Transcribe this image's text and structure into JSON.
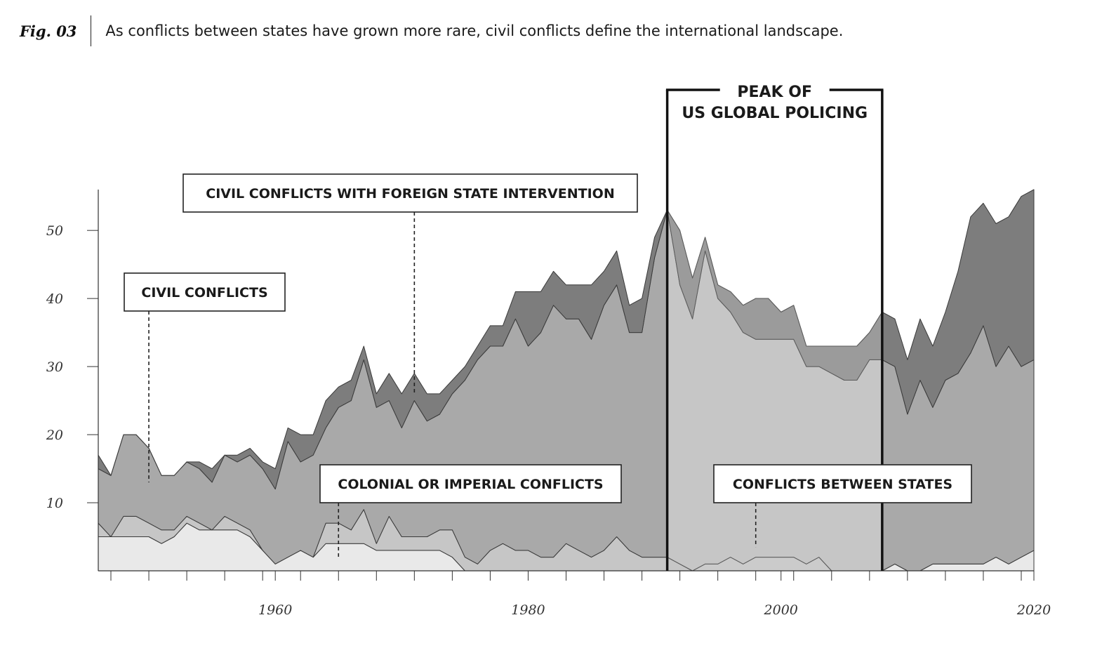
{
  "header": {
    "fig_label": "Fig. 03",
    "caption": "As conflicts between states have grown more rare, civil conflicts define the international landscape."
  },
  "chart_data": {
    "type": "area",
    "stacked": true,
    "x": [
      1946,
      1947,
      1948,
      1949,
      1950,
      1951,
      1952,
      1953,
      1954,
      1955,
      1956,
      1957,
      1958,
      1959,
      1960,
      1961,
      1962,
      1963,
      1964,
      1965,
      1966,
      1967,
      1968,
      1969,
      1970,
      1971,
      1972,
      1973,
      1974,
      1975,
      1976,
      1977,
      1978,
      1979,
      1980,
      1981,
      1982,
      1983,
      1984,
      1985,
      1986,
      1987,
      1988,
      1989,
      1990,
      1991,
      1992,
      1993,
      1994,
      1995,
      1996,
      1997,
      1998,
      1999,
      2000,
      2001,
      2002,
      2003,
      2004,
      2005,
      2006,
      2007,
      2008,
      2009,
      2010,
      2011,
      2012,
      2013,
      2014,
      2015,
      2016,
      2017,
      2018,
      2019,
      2020
    ],
    "series": [
      {
        "name": "Conflicts between states",
        "values": [
          5,
          5,
          5,
          5,
          5,
          4,
          5,
          7,
          6,
          6,
          6,
          6,
          5,
          3,
          1,
          2,
          3,
          2,
          4,
          4,
          4,
          4,
          3,
          3,
          3,
          3,
          3,
          3,
          2,
          0,
          0,
          0,
          0,
          0,
          0,
          0,
          0,
          0,
          0,
          0,
          0,
          0,
          0,
          0,
          0,
          0,
          0,
          0,
          1,
          1,
          2,
          1,
          2,
          2,
          2,
          2,
          1,
          2,
          0,
          0,
          0,
          0,
          0,
          1,
          0,
          0,
          1,
          1,
          1,
          1,
          1,
          2,
          1,
          2,
          3
        ]
      },
      {
        "name": "Colonial or imperial conflicts",
        "values": [
          2,
          0,
          3,
          3,
          2,
          2,
          1,
          1,
          1,
          0,
          2,
          1,
          1,
          0,
          0,
          0,
          0,
          0,
          3,
          3,
          2,
          5,
          1,
          5,
          2,
          2,
          2,
          3,
          4,
          2,
          1,
          3,
          4,
          3,
          3,
          2,
          2,
          4,
          3,
          2,
          3,
          5,
          3,
          2,
          2,
          2,
          1,
          0,
          0,
          0,
          0,
          0,
          0,
          0,
          0,
          0,
          0,
          0,
          0,
          0,
          0,
          0,
          0,
          0,
          0,
          0,
          0,
          0,
          0,
          0,
          0,
          0,
          0,
          0,
          0
        ]
      },
      {
        "name": "Civil conflicts",
        "values": [
          8,
          9,
          12,
          12,
          11,
          8,
          8,
          8,
          8,
          7,
          9,
          9,
          11,
          12,
          11,
          17,
          13,
          15,
          14,
          17,
          19,
          22,
          20,
          17,
          16,
          20,
          17,
          17,
          20,
          26,
          30,
          30,
          29,
          34,
          30,
          33,
          37,
          33,
          34,
          32,
          36,
          37,
          32,
          33,
          44,
          51,
          41,
          37,
          46,
          39,
          36,
          34,
          32,
          32,
          32,
          32,
          29,
          28,
          29,
          28,
          28,
          31,
          31,
          29,
          23,
          28,
          23,
          27,
          28,
          31,
          35,
          28,
          32,
          28,
          28
        ]
      },
      {
        "name": "Civil conflicts with foreign state intervention",
        "values": [
          2,
          0,
          0,
          0,
          0,
          0,
          0,
          0,
          1,
          2,
          0,
          1,
          1,
          1,
          3,
          2,
          4,
          3,
          4,
          3,
          3,
          2,
          2,
          4,
          5,
          4,
          4,
          3,
          2,
          2,
          2,
          3,
          3,
          4,
          8,
          6,
          5,
          5,
          5,
          8,
          5,
          5,
          4,
          5,
          3,
          0,
          8,
          6,
          2,
          2,
          3,
          4,
          6,
          6,
          4,
          5,
          3,
          3,
          4,
          5,
          5,
          4,
          7,
          7,
          8,
          9,
          9,
          10,
          15,
          20,
          18,
          21,
          19,
          25,
          25
        ]
      }
    ],
    "series_shades": [
      "#e9e9e9",
      "#c6c6c6",
      "#a9a9a9",
      "#7d7d7d"
    ],
    "highlight_shades": {
      "Conflicts between states": "#cbcbcb",
      "Civil conflicts": "#c6c6c6",
      "Civil conflicts with foreign state intervention": "#9b9b9b"
    },
    "highlight_range": [
      1991,
      2008
    ],
    "highlight_label": [
      "PEAK OF",
      "US GLOBAL POLICING"
    ],
    "x_ticks": [
      1960,
      1980,
      2000,
      2020
    ],
    "y_ticks": [
      10,
      20,
      30,
      40,
      50
    ],
    "ylim": [
      0,
      56
    ],
    "xlim": [
      1946,
      2020
    ],
    "grid": false,
    "annotations": [
      {
        "text": "CIVIL CONFLICTS",
        "year": 1950,
        "value": 13
      },
      {
        "text": "CIVIL CONFLICTS WITH FOREIGN STATE INTERVENTION",
        "year": 1971,
        "value": 26
      },
      {
        "text": "COLONIAL OR IMPERIAL CONFLICTS",
        "year": 1965,
        "value": 2
      },
      {
        "text": "CONFLICTS BETWEEN STATES",
        "year": 1998,
        "value": 3.5
      }
    ]
  }
}
